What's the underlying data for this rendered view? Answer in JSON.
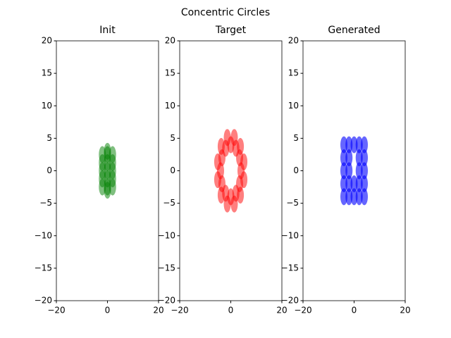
{
  "title": "Concentric Circles",
  "chart_data": [
    {
      "type": "scatter",
      "title": "Init",
      "color": "#008000",
      "alpha": 0.5,
      "x": [
        -2,
        0,
        2,
        -2,
        0,
        2,
        -2,
        0,
        2,
        -2,
        0,
        2,
        -2,
        0,
        2,
        0,
        0
      ],
      "y": [
        -2.5,
        -2.5,
        -2.5,
        -1.25,
        -1.25,
        -1.25,
        0,
        0,
        0,
        1.25,
        1.25,
        1.25,
        2.5,
        2.5,
        2.5,
        3,
        -3
      ],
      "xlim": [
        -20,
        20
      ],
      "ylim": [
        -20,
        20
      ],
      "xticks": [
        {
          "value": -20,
          "label": "−20"
        },
        0,
        20
      ],
      "yticks": [
        {
          "value": -20,
          "label": "−20"
        },
        {
          "value": -15,
          "label": "−15"
        },
        {
          "value": -10,
          "label": "−10"
        },
        {
          "value": -5,
          "label": "−5"
        },
        0,
        5,
        10,
        15,
        20
      ]
    },
    {
      "type": "scatter",
      "title": "Target",
      "color": "#ff0000",
      "alpha": 0.5,
      "x": [
        4,
        3.46,
        2,
        0,
        -2,
        -3.46,
        -4,
        -3.46,
        -2,
        0,
        2,
        3.46,
        5.12,
        3.75,
        1.37,
        -1.37,
        -3.75,
        -5.12,
        -5.12,
        -3.75,
        -1.37,
        1.37,
        3.75,
        5.12
      ],
      "y": [
        0,
        2,
        3.46,
        4,
        3.46,
        2,
        0,
        -2,
        -3.46,
        -4,
        -3.46,
        -2,
        1.37,
        3.75,
        5.12,
        5.12,
        3.75,
        1.37,
        -1.37,
        -3.75,
        -5.12,
        -5.12,
        -3.75,
        -1.37
      ],
      "xlim": [
        -20,
        20
      ],
      "ylim": [
        -20,
        20
      ],
      "xticks": [
        {
          "value": -20,
          "label": "−20"
        },
        0,
        20
      ],
      "yticks": [
        {
          "value": -20,
          "label": "−20"
        },
        {
          "value": -15,
          "label": "−15"
        },
        {
          "value": -10,
          "label": "−10"
        },
        {
          "value": -5,
          "label": "−5"
        },
        0,
        5,
        10,
        15,
        20
      ]
    },
    {
      "type": "scatter",
      "title": "Generated",
      "color": "#0000ff",
      "alpha": 0.6,
      "x": [
        -4,
        -2,
        0,
        2,
        4,
        -4,
        -2,
        0,
        2,
        4,
        -4,
        -2,
        2,
        4,
        -4,
        -2,
        2,
        4,
        -4,
        -2,
        0,
        2,
        4
      ],
      "y": [
        -4,
        -4,
        -4,
        -4,
        -4,
        -2,
        -2,
        -2,
        -2,
        -2,
        0,
        0,
        0,
        0,
        2,
        2,
        2,
        2,
        4,
        4,
        4,
        4,
        4
      ],
      "xlim": [
        -20,
        20
      ],
      "ylim": [
        -20,
        20
      ],
      "xticks": [
        {
          "value": -20,
          "label": "−20"
        },
        0,
        20
      ],
      "yticks": [
        {
          "value": -20,
          "label": "−20"
        },
        {
          "value": -15,
          "label": "−15"
        },
        {
          "value": -10,
          "label": "−10"
        },
        {
          "value": -5,
          "label": "−5"
        },
        0,
        5,
        10,
        15,
        20
      ]
    }
  ]
}
